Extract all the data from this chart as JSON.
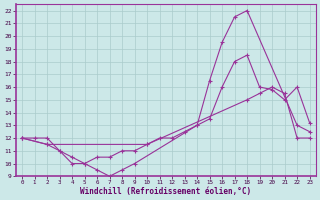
{
  "xlabel": "Windchill (Refroidissement éolien,°C)",
  "bg_color": "#cce8e8",
  "line_color": "#993399",
  "grid_color": "#aacccc",
  "xlim": [
    -0.5,
    23.5
  ],
  "ylim": [
    9,
    22.5
  ],
  "xticks": [
    0,
    1,
    2,
    3,
    4,
    5,
    6,
    7,
    8,
    9,
    10,
    11,
    12,
    13,
    14,
    15,
    16,
    17,
    18,
    19,
    20,
    21,
    22,
    23
  ],
  "yticks": [
    9,
    10,
    11,
    12,
    13,
    14,
    15,
    16,
    17,
    18,
    19,
    20,
    21,
    22
  ],
  "line1_x": [
    0,
    1,
    2,
    3,
    4,
    5,
    6,
    7,
    8,
    9,
    14,
    15,
    16,
    17,
    18,
    22,
    23
  ],
  "line1_y": [
    12,
    12,
    12,
    11,
    10.5,
    10,
    9.5,
    9,
    9.5,
    10,
    13,
    16.5,
    19.5,
    21.5,
    22,
    13,
    12.5
  ],
  "line2_x": [
    0,
    2,
    3,
    4,
    5,
    6,
    7,
    8,
    9,
    10,
    11,
    12,
    13,
    14,
    15,
    16,
    17,
    18,
    19,
    20,
    21,
    22,
    23
  ],
  "line2_y": [
    12,
    11.5,
    11,
    10,
    10,
    10.5,
    10.5,
    11,
    11,
    11.5,
    12,
    12,
    12.5,
    13,
    13.5,
    16,
    18,
    18.5,
    16,
    15.8,
    15,
    16,
    13.2
  ],
  "line3_x": [
    0,
    2,
    10,
    18,
    19,
    20,
    21,
    22,
    23
  ],
  "line3_y": [
    12,
    11.5,
    11.5,
    15,
    15.5,
    16,
    15.5,
    12,
    12
  ]
}
